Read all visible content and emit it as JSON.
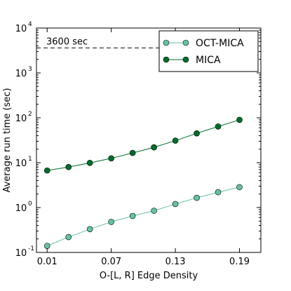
{
  "chart_data": {
    "type": "line",
    "title": "",
    "xlabel": "O-[L, R] Edge Density",
    "ylabel": "Average run time (sec)",
    "x": [
      0.01,
      0.03,
      0.05,
      0.07,
      0.09,
      0.11,
      0.13,
      0.15,
      0.17,
      0.19
    ],
    "x_tick_values": [
      0.01,
      0.07,
      0.13,
      0.19
    ],
    "x_tick_labels": [
      "0.01",
      "0.07",
      "0.13",
      "0.19"
    ],
    "xlim": [
      0.0,
      0.21
    ],
    "ylim": [
      0.1,
      10000
    ],
    "y_scale": "log",
    "y_tick_values": [
      0.1,
      1,
      10,
      100,
      1000,
      10000
    ],
    "y_tick_bases": [
      "10",
      "10",
      "10",
      "10",
      "10",
      "10"
    ],
    "y_tick_exponents": [
      "-1",
      "0",
      "1",
      "2",
      "3",
      "4"
    ],
    "grid": false,
    "legend_position": "top-right",
    "series": [
      {
        "name": "OCT-MICA",
        "color": "#66c2a4",
        "marker": "circle",
        "values": [
          0.14,
          0.22,
          0.33,
          0.48,
          0.65,
          0.85,
          1.2,
          1.65,
          2.2,
          2.85
        ]
      },
      {
        "name": "MICA",
        "color": "#006d2c",
        "marker": "circle",
        "values": [
          6.7,
          8.0,
          9.9,
          12.5,
          16.5,
          22.0,
          31.0,
          45.0,
          64.0,
          90.0
        ]
      }
    ],
    "reference_line": {
      "y": 3600,
      "label": "3600 sec",
      "style": "dashed",
      "color": "#555555"
    }
  }
}
